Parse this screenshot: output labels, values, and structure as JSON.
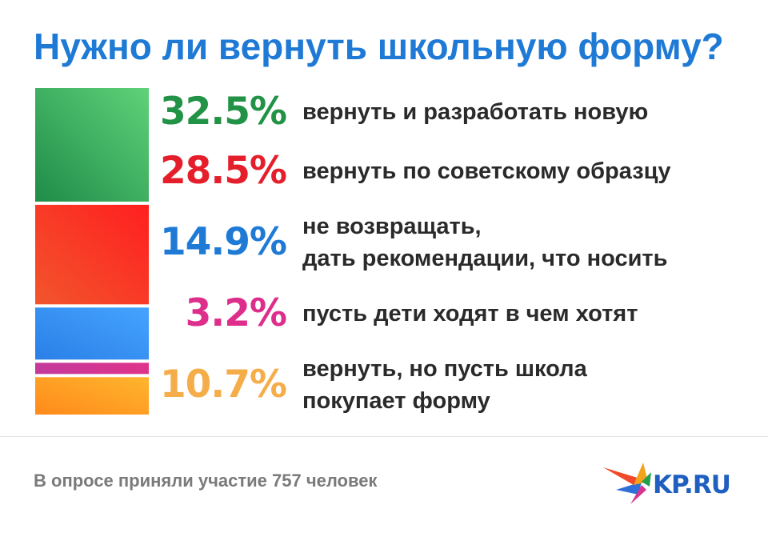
{
  "title": "Нужно ли вернуть школьную форму?",
  "footer": "В опросе приняли участие 757 человек",
  "brand": "KP.RU",
  "chart_data": {
    "type": "bar",
    "stacked": true,
    "categories": [
      "вернуть и разработать новую",
      "вернуть по советскому образцу",
      "не возвращать, дать рекомендации, что носить",
      "пусть дети ходят в чем хотят",
      "вернуть, но пусть школа покупает форму"
    ],
    "values": [
      32.5,
      28.5,
      14.9,
      3.2,
      10.7
    ],
    "value_labels": [
      "32.5%",
      "28.5%",
      "14.9%",
      "3.2%",
      "10.7%"
    ],
    "colors": [
      "#2e9e57",
      "#ee3a2b",
      "#2f8ef2",
      "#d8348f",
      "#f7a126"
    ]
  },
  "rows": [
    {
      "pct": "32.5%",
      "lines": [
        "вернуть и разработать новую"
      ],
      "color": "#219246"
    },
    {
      "pct": "28.5%",
      "lines": [
        "вернуть по советскому образцу"
      ],
      "color": "#e41f2b"
    },
    {
      "pct": "14.9%",
      "lines": [
        "не возвращать,",
        "дать рекомендации, что носить"
      ],
      "color": "#1f7ad6"
    },
    {
      "pct": "3.2%",
      "lines": [
        "пусть дети ходят в чем хотят"
      ],
      "color": "#de2e8c"
    },
    {
      "pct": "10.7%",
      "lines": [
        "вернуть, но пусть школа",
        "покупает форму"
      ],
      "color": "#f5ad4a"
    }
  ]
}
